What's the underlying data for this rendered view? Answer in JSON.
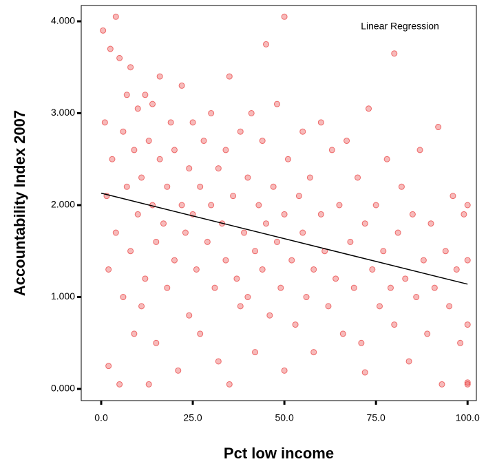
{
  "chart_data": {
    "type": "scatter",
    "xlabel": "Pct low income",
    "ylabel": "Accountability Index 2007",
    "annotation": "Linear Regression",
    "color": "#e83838",
    "x": [
      0.5,
      1,
      1.5,
      2,
      2,
      2.5,
      3,
      4,
      4,
      5,
      5,
      6,
      6,
      7,
      7,
      8,
      8,
      9,
      9,
      10,
      10,
      11,
      11,
      12,
      12,
      13,
      13,
      14,
      14,
      15,
      15,
      16,
      16,
      17,
      18,
      18,
      19,
      20,
      20,
      21,
      22,
      22,
      23,
      24,
      24,
      25,
      25,
      26,
      27,
      27,
      28,
      29,
      30,
      30,
      31,
      32,
      32,
      33,
      34,
      34,
      35,
      35,
      36,
      37,
      38,
      38,
      39,
      40,
      40,
      41,
      42,
      42,
      43,
      44,
      44,
      45,
      45,
      46,
      47,
      48,
      48,
      49,
      50,
      50,
      50,
      51,
      52,
      53,
      54,
      55,
      55,
      56,
      57,
      58,
      58,
      60,
      60,
      61,
      62,
      63,
      64,
      65,
      66,
      67,
      68,
      69,
      70,
      71,
      72,
      72,
      73,
      74,
      75,
      76,
      77,
      78,
      79,
      80,
      80,
      81,
      82,
      83,
      84,
      85,
      86,
      87,
      88,
      89,
      90,
      91,
      92,
      93,
      94,
      95,
      96,
      97,
      98,
      99,
      100,
      100,
      100,
      100,
      100
    ],
    "values": [
      3.9,
      2.9,
      2.1,
      1.3,
      0.25,
      3.7,
      2.5,
      4.05,
      1.7,
      3.6,
      0.05,
      2.8,
      1.0,
      3.2,
      2.2,
      3.5,
      1.5,
      2.6,
      0.6,
      3.05,
      1.9,
      2.3,
      0.9,
      3.2,
      1.2,
      2.7,
      0.05,
      2.0,
      3.1,
      1.6,
      0.5,
      2.5,
      3.4,
      1.8,
      2.2,
      1.1,
      2.9,
      1.4,
      2.6,
      0.2,
      2.0,
      3.3,
      1.7,
      2.4,
      0.8,
      1.9,
      2.9,
      1.3,
      2.2,
      0.6,
      2.7,
      1.6,
      2.0,
      3.0,
      1.1,
      2.4,
      0.3,
      1.8,
      2.6,
      1.4,
      0.05,
      3.4,
      2.1,
      1.2,
      2.8,
      0.9,
      1.7,
      2.3,
      1.0,
      3.0,
      1.5,
      0.4,
      2.0,
      2.7,
      1.3,
      3.75,
      1.8,
      0.8,
      2.2,
      1.6,
      3.1,
      1.1,
      4.05,
      0.2,
      1.9,
      2.5,
      1.4,
      0.7,
      2.1,
      1.7,
      2.8,
      1.0,
      2.3,
      1.3,
      0.4,
      1.9,
      2.9,
      1.5,
      0.9,
      2.6,
      1.2,
      2.0,
      0.6,
      2.7,
      1.6,
      1.1,
      2.3,
      0.5,
      0.18,
      1.8,
      3.05,
      1.3,
      2.0,
      0.9,
      1.5,
      2.5,
      1.1,
      3.65,
      0.7,
      1.7,
      2.2,
      1.2,
      0.3,
      1.9,
      1.0,
      2.6,
      1.4,
      0.6,
      1.8,
      1.1,
      2.85,
      0.05,
      1.5,
      0.9,
      2.1,
      1.3,
      0.5,
      1.9,
      0.05,
      0.07,
      1.4,
      2.0,
      0.7
    ],
    "regression": {
      "x": [
        0,
        100
      ],
      "values": [
        2.13,
        1.14
      ],
      "color": "#000000"
    },
    "xlim": [
      -5.45,
      102.4
    ],
    "ylim": [
      -0.127,
      4.172
    ],
    "xticks": [
      {
        "value": 0,
        "label": "0.0"
      },
      {
        "value": 25,
        "label": "25.0"
      },
      {
        "value": 50,
        "label": "50.0"
      },
      {
        "value": 75,
        "label": "75.0"
      },
      {
        "value": 100,
        "label": "100.0"
      }
    ],
    "yticks": [
      {
        "value": 0,
        "label": "0.000"
      },
      {
        "value": 1,
        "label": "1.000"
      },
      {
        "value": 2,
        "label": "2.000"
      },
      {
        "value": 3,
        "label": "3.000"
      },
      {
        "value": 4,
        "label": "4.000"
      }
    ]
  }
}
